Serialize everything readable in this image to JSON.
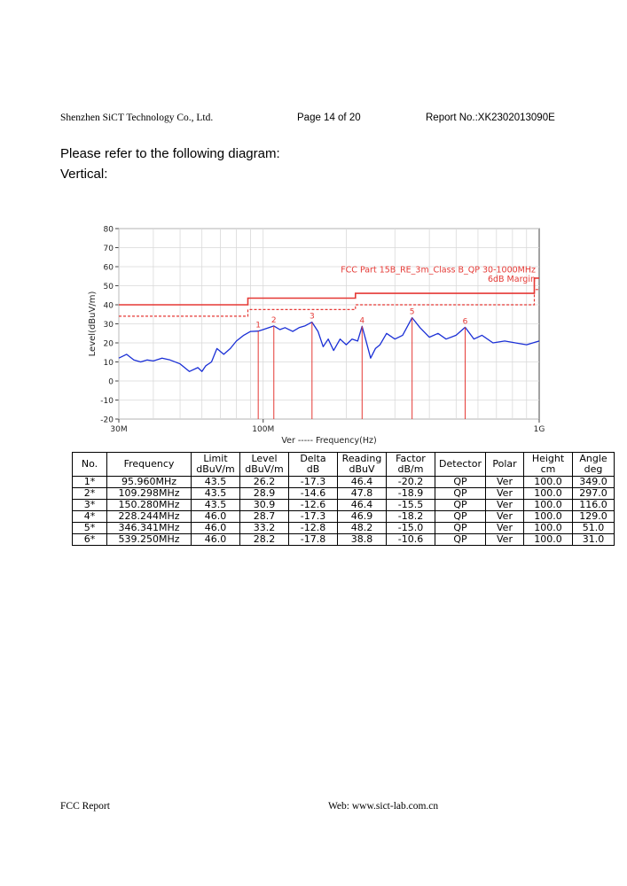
{
  "header": {
    "company": "Shenzhen SiCT Technology Co., Ltd.",
    "page": "Page 14 of 20",
    "report_no": "Report No.:XK2302013090E"
  },
  "intro": {
    "line1": "Please refer to the following diagram:",
    "line2": "Vertical:"
  },
  "colors": {
    "trace": "#1a2fd6",
    "limit": "#e53935",
    "grid": "#d9d9d9",
    "axis": "#444444"
  },
  "chart_data": {
    "type": "line",
    "ylabel": "Level(dBuV/m)",
    "xlabel": "Ver  -----  Frequency(Hz)",
    "x_scale": "log",
    "xlim": [
      30,
      1000
    ],
    "ylim": [
      -20,
      80
    ],
    "x_ticks": [
      {
        "value": 30,
        "label": "30M"
      },
      {
        "value": 100,
        "label": "100M"
      },
      {
        "value": 1000,
        "label": "1G"
      }
    ],
    "y_ticks": [
      80,
      70,
      60,
      50,
      40,
      30,
      20,
      10,
      0,
      -10,
      -20
    ],
    "grid": true,
    "limit_label": "FCC Part 15B_RE_3m_Class B_QP 30-1000MHz",
    "margin_label": "6dB Margin",
    "series": [
      {
        "name": "",
        "style": "solid-red",
        "x": [
          30,
          88,
          88,
          216,
          216,
          960,
          960,
          1000
        ],
        "y": [
          40,
          40,
          43.5,
          43.5,
          46,
          46,
          54,
          54
        ]
      },
      {
        "name": "",
        "style": "dashed-red",
        "x": [
          30,
          88,
          88,
          216,
          216,
          960,
          960,
          1000
        ],
        "y": [
          34,
          34,
          37.5,
          37.5,
          40,
          40,
          48,
          48
        ]
      },
      {
        "name": "",
        "style": "trace-blue",
        "x": [
          30,
          32,
          34,
          36,
          38,
          40,
          43,
          46,
          50,
          54,
          58,
          60,
          62,
          65,
          68,
          72,
          76,
          80,
          85,
          90,
          95.96,
          100,
          105,
          109.3,
          115,
          120,
          128,
          135,
          142,
          150.28,
          158,
          165,
          172,
          180,
          190,
          200,
          210,
          220,
          228.24,
          235,
          245,
          255,
          265,
          280,
          300,
          320,
          346.34,
          370,
          400,
          430,
          460,
          500,
          539.25,
          580,
          620,
          680,
          750,
          820,
          900,
          1000
        ],
        "y": [
          12,
          14,
          11,
          10,
          11,
          10.5,
          12,
          11,
          9,
          5,
          7,
          5,
          8,
          10,
          17,
          14,
          17,
          21,
          24,
          26,
          26.2,
          27,
          28,
          28.9,
          27,
          28,
          26,
          28,
          29,
          30.9,
          26,
          18,
          22,
          16,
          22,
          19,
          22,
          21,
          28.7,
          22,
          12,
          17,
          19,
          25,
          22,
          24,
          33.2,
          28,
          23,
          25,
          22,
          24,
          28.2,
          22,
          24,
          20,
          21,
          20,
          19,
          21
        ]
      }
    ],
    "markers": [
      {
        "label": "1",
        "x": 95.96,
        "y": 26.2
      },
      {
        "label": "2",
        "x": 109.298,
        "y": 28.9
      },
      {
        "label": "3",
        "x": 150.28,
        "y": 30.9
      },
      {
        "label": "4",
        "x": 228.244,
        "y": 28.7
      },
      {
        "label": "5",
        "x": 346.341,
        "y": 33.2
      },
      {
        "label": "6",
        "x": 539.25,
        "y": 28.2
      }
    ]
  },
  "table": {
    "headers": [
      [
        "No.",
        ""
      ],
      [
        "Frequency",
        ""
      ],
      [
        "Limit",
        "dBuV/m"
      ],
      [
        "Level",
        "dBuV/m"
      ],
      [
        "Delta",
        "dB"
      ],
      [
        "Reading",
        "dBuV"
      ],
      [
        "Factor",
        "dB/m"
      ],
      [
        "Detector",
        ""
      ],
      [
        "Polar",
        ""
      ],
      [
        "Height",
        "cm"
      ],
      [
        "Angle",
        "deg"
      ]
    ],
    "rows": [
      [
        "1*",
        "95.960MHz",
        "43.5",
        "26.2",
        "-17.3",
        "46.4",
        "-20.2",
        "QP",
        "Ver",
        "100.0",
        "349.0"
      ],
      [
        "2*",
        "109.298MHz",
        "43.5",
        "28.9",
        "-14.6",
        "47.8",
        "-18.9",
        "QP",
        "Ver",
        "100.0",
        "297.0"
      ],
      [
        "3*",
        "150.280MHz",
        "43.5",
        "30.9",
        "-12.6",
        "46.4",
        "-15.5",
        "QP",
        "Ver",
        "100.0",
        "116.0"
      ],
      [
        "4*",
        "228.244MHz",
        "46.0",
        "28.7",
        "-17.3",
        "46.9",
        "-18.2",
        "QP",
        "Ver",
        "100.0",
        "129.0"
      ],
      [
        "5*",
        "346.341MHz",
        "46.0",
        "33.2",
        "-12.8",
        "48.2",
        "-15.0",
        "QP",
        "Ver",
        "100.0",
        "51.0"
      ],
      [
        "6*",
        "539.250MHz",
        "46.0",
        "28.2",
        "-17.8",
        "38.8",
        "-10.6",
        "QP",
        "Ver",
        "100.0",
        "31.0"
      ]
    ]
  },
  "footer": {
    "left": "FCC Report",
    "right": "Web: www.sict-lab.com.cn"
  }
}
